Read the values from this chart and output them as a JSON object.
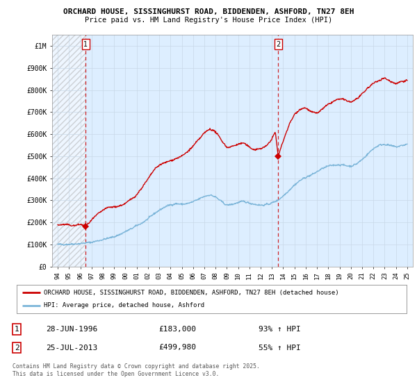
{
  "title1": "ORCHARD HOUSE, SISSINGHURST ROAD, BIDDENDEN, ASHFORD, TN27 8EH",
  "title2": "Price paid vs. HM Land Registry's House Price Index (HPI)",
  "legend_line1": "ORCHARD HOUSE, SISSINGHURST ROAD, BIDDENDEN, ASHFORD, TN27 8EH (detached house)",
  "legend_line2": "HPI: Average price, detached house, Ashford",
  "footnote": "Contains HM Land Registry data © Crown copyright and database right 2025.\nThis data is licensed under the Open Government Licence v3.0.",
  "sale1_date": "28-JUN-1996",
  "sale1_price": 183000,
  "sale1_hpi": "93% ↑ HPI",
  "sale1_x": 1996.49,
  "sale2_date": "25-JUL-2013",
  "sale2_price": 499980,
  "sale2_hpi": "55% ↑ HPI",
  "sale2_x": 2013.56,
  "hpi_color": "#7ab4d8",
  "price_color": "#cc0000",
  "dashed_color": "#cc0000",
  "bg_color": "#ddeeff",
  "plot_bg": "#ffffff",
  "ylim_max": 1050000,
  "xlim_min": 1993.5,
  "xlim_max": 2025.5,
  "hpi_points": [
    [
      1994.0,
      100000
    ],
    [
      1994.5,
      100500
    ],
    [
      1995.0,
      101000
    ],
    [
      1995.5,
      103000
    ],
    [
      1996.0,
      104000
    ],
    [
      1996.5,
      107000
    ],
    [
      1997.0,
      110000
    ],
    [
      1997.5,
      116000
    ],
    [
      1998.0,
      122000
    ],
    [
      1998.5,
      128000
    ],
    [
      1999.0,
      135000
    ],
    [
      1999.5,
      145000
    ],
    [
      2000.0,
      158000
    ],
    [
      2000.5,
      170000
    ],
    [
      2001.0,
      185000
    ],
    [
      2001.5,
      198000
    ],
    [
      2002.0,
      215000
    ],
    [
      2002.5,
      238000
    ],
    [
      2003.0,
      255000
    ],
    [
      2003.5,
      270000
    ],
    [
      2004.0,
      280000
    ],
    [
      2004.5,
      285000
    ],
    [
      2005.0,
      282000
    ],
    [
      2005.5,
      285000
    ],
    [
      2006.0,
      293000
    ],
    [
      2006.5,
      305000
    ],
    [
      2007.0,
      318000
    ],
    [
      2007.5,
      325000
    ],
    [
      2008.0,
      315000
    ],
    [
      2008.5,
      295000
    ],
    [
      2009.0,
      278000
    ],
    [
      2009.5,
      282000
    ],
    [
      2010.0,
      290000
    ],
    [
      2010.5,
      295000
    ],
    [
      2011.0,
      288000
    ],
    [
      2011.5,
      282000
    ],
    [
      2012.0,
      278000
    ],
    [
      2012.5,
      280000
    ],
    [
      2013.0,
      288000
    ],
    [
      2013.5,
      300000
    ],
    [
      2014.0,
      320000
    ],
    [
      2014.5,
      345000
    ],
    [
      2015.0,
      370000
    ],
    [
      2015.5,
      390000
    ],
    [
      2016.0,
      405000
    ],
    [
      2016.5,
      415000
    ],
    [
      2017.0,
      430000
    ],
    [
      2017.5,
      445000
    ],
    [
      2018.0,
      455000
    ],
    [
      2018.5,
      460000
    ],
    [
      2019.0,
      462000
    ],
    [
      2019.5,
      458000
    ],
    [
      2020.0,
      455000
    ],
    [
      2020.5,
      465000
    ],
    [
      2021.0,
      485000
    ],
    [
      2021.5,
      510000
    ],
    [
      2022.0,
      535000
    ],
    [
      2022.5,
      550000
    ],
    [
      2023.0,
      555000
    ],
    [
      2023.5,
      548000
    ],
    [
      2024.0,
      542000
    ],
    [
      2024.5,
      548000
    ],
    [
      2025.0,
      555000
    ]
  ],
  "price_points": [
    [
      1994.0,
      188000
    ],
    [
      1994.5,
      190000
    ],
    [
      1995.0,
      188000
    ],
    [
      1995.5,
      185000
    ],
    [
      1996.0,
      191000
    ],
    [
      1996.49,
      183000
    ],
    [
      1997.0,
      210000
    ],
    [
      1997.5,
      235000
    ],
    [
      1998.0,
      255000
    ],
    [
      1998.5,
      268000
    ],
    [
      1999.0,
      270000
    ],
    [
      1999.5,
      275000
    ],
    [
      2000.0,
      285000
    ],
    [
      2000.5,
      305000
    ],
    [
      2001.0,
      325000
    ],
    [
      2001.5,
      360000
    ],
    [
      2002.0,
      395000
    ],
    [
      2002.5,
      435000
    ],
    [
      2003.0,
      460000
    ],
    [
      2003.5,
      470000
    ],
    [
      2004.0,
      480000
    ],
    [
      2004.5,
      490000
    ],
    [
      2005.0,
      500000
    ],
    [
      2005.5,
      520000
    ],
    [
      2006.0,
      545000
    ],
    [
      2006.5,
      575000
    ],
    [
      2007.0,
      605000
    ],
    [
      2007.5,
      625000
    ],
    [
      2008.0,
      610000
    ],
    [
      2008.5,
      575000
    ],
    [
      2009.0,
      540000
    ],
    [
      2009.5,
      545000
    ],
    [
      2010.0,
      555000
    ],
    [
      2010.5,
      560000
    ],
    [
      2011.0,
      540000
    ],
    [
      2011.5,
      530000
    ],
    [
      2012.0,
      535000
    ],
    [
      2012.5,
      545000
    ],
    [
      2013.0,
      580000
    ],
    [
      2013.3,
      610000
    ],
    [
      2013.56,
      499980
    ],
    [
      2014.0,
      570000
    ],
    [
      2014.5,
      640000
    ],
    [
      2015.0,
      690000
    ],
    [
      2015.5,
      715000
    ],
    [
      2016.0,
      720000
    ],
    [
      2016.5,
      700000
    ],
    [
      2017.0,
      695000
    ],
    [
      2017.5,
      715000
    ],
    [
      2018.0,
      735000
    ],
    [
      2018.5,
      750000
    ],
    [
      2019.0,
      760000
    ],
    [
      2019.5,
      755000
    ],
    [
      2020.0,
      745000
    ],
    [
      2020.5,
      760000
    ],
    [
      2021.0,
      780000
    ],
    [
      2021.5,
      810000
    ],
    [
      2022.0,
      830000
    ],
    [
      2022.5,
      845000
    ],
    [
      2023.0,
      855000
    ],
    [
      2023.5,
      840000
    ],
    [
      2024.0,
      830000
    ],
    [
      2024.5,
      840000
    ],
    [
      2025.0,
      845000
    ]
  ]
}
